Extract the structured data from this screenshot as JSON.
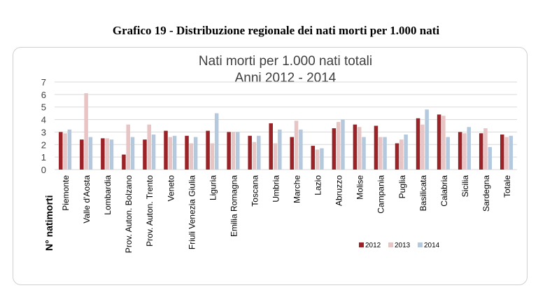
{
  "figure_title": "Grafico 19 - Distribuzione regionale dei nati morti per 1.000 nati",
  "chart_data": {
    "type": "bar",
    "title": "Nati morti per 1.000 nati totali",
    "subtitle": "Anni 2012 - 2014",
    "xlabel": "",
    "ylabel": "N° natimorti",
    "ylim": [
      0,
      7
    ],
    "yticks": [
      0,
      1,
      2,
      3,
      4,
      5,
      6,
      7
    ],
    "grid": true,
    "legend_position": "bottom-right",
    "categories": [
      "Piemonte",
      "Valle d'Aosta",
      "Lombardia",
      "Prov. Auton. Bolzano",
      "Prov. Auton. Trento",
      "Veneto",
      "Friuli Venezia Giulia",
      "Liguria",
      "Emilia Romagna",
      "Toscana",
      "Umbria",
      "Marche",
      "Lazio",
      "Abruzzo",
      "Molise",
      "Campania",
      "Puglia",
      "Basilicata",
      "Calabria",
      "Sicilia",
      "Sardegna",
      "Totale"
    ],
    "series": [
      {
        "name": "2012",
        "color": "#9b2226",
        "values": [
          3.0,
          2.4,
          2.5,
          1.2,
          2.4,
          3.1,
          2.7,
          3.1,
          3.0,
          2.7,
          3.7,
          2.6,
          1.9,
          3.3,
          3.6,
          3.5,
          2.1,
          4.1,
          4.4,
          3.0,
          2.9,
          2.8
        ]
      },
      {
        "name": "2013",
        "color": "#e8c4c4",
        "values": [
          2.9,
          6.1,
          2.5,
          3.6,
          3.6,
          2.6,
          2.1,
          2.1,
          3.0,
          2.2,
          2.1,
          3.9,
          1.6,
          3.8,
          3.4,
          2.6,
          2.4,
          3.6,
          4.3,
          2.9,
          3.3,
          2.6
        ]
      },
      {
        "name": "2014",
        "color": "#b4c9de",
        "values": [
          3.2,
          2.6,
          2.4,
          2.6,
          2.8,
          2.7,
          2.6,
          4.5,
          3.0,
          2.7,
          3.2,
          3.2,
          1.7,
          4.0,
          2.6,
          2.6,
          2.8,
          4.8,
          2.6,
          3.4,
          1.8,
          2.7
        ]
      }
    ]
  }
}
